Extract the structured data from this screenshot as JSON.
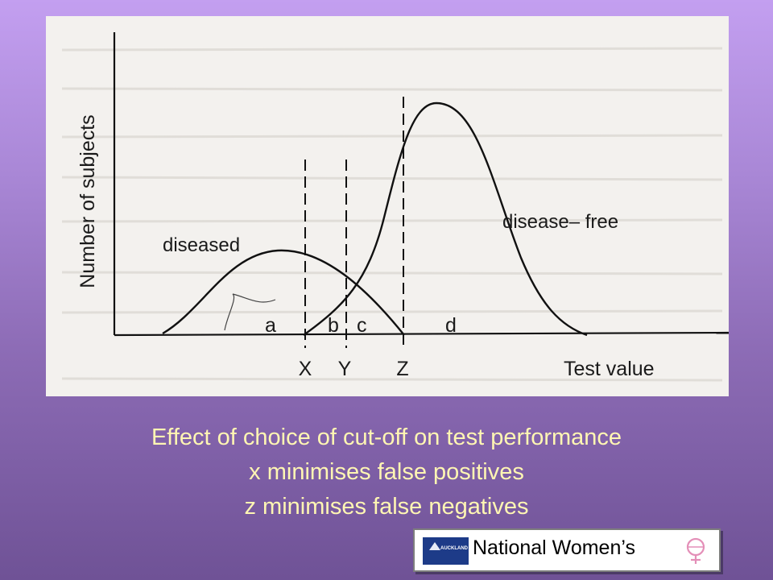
{
  "figure": {
    "axis_y_label": "Number of subjects",
    "axis_x_label": "Test value",
    "curve_labels": {
      "diseased": "diseased",
      "disease_free": "disease– free"
    },
    "region_labels": [
      "a",
      "b",
      "c",
      "d"
    ],
    "cutoff_labels": [
      "X",
      "Y",
      "Z"
    ]
  },
  "caption": {
    "line1": "Effect of choice of cut-off on test performance",
    "line2": "x minimises false positives",
    "line3": "z minimises false negatives"
  },
  "logo": {
    "name": "National Women’s",
    "badge_text": "AUCKLAND",
    "badge_icon": "mountain-icon",
    "emblem_icon": "female-symbol-icon"
  },
  "colors": {
    "caption_text": "#fff6b3",
    "background_top": "#c39ff0",
    "background_bottom": "#6f5296",
    "figure_background": "#f3f1ee"
  }
}
